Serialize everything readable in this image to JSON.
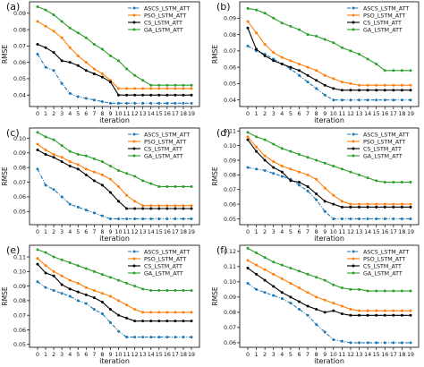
{
  "chart_data": [
    {
      "type": "line",
      "panel_label": "(a)",
      "xlabel": "iteration",
      "ylabel": "RMSE",
      "x": [
        0,
        1,
        2,
        3,
        4,
        5,
        6,
        7,
        8,
        9,
        10,
        11,
        12,
        13,
        14,
        15,
        16,
        17,
        18,
        19
      ],
      "xticks": [
        "0",
        "1",
        "2",
        "3",
        "4",
        "5",
        "6",
        "7",
        "8",
        "9",
        "10",
        "11",
        "12",
        "13",
        "14",
        "15",
        "16",
        "17",
        "18",
        "19"
      ],
      "ylim": [
        0.033,
        0.097
      ],
      "yticks": [
        0.04,
        0.05,
        0.06,
        0.07,
        0.08,
        0.09
      ],
      "ytick_labels": [
        "0.04",
        "0.05",
        "0.06",
        "0.07",
        "0.08",
        "0.09"
      ],
      "legend_position": "top-right",
      "series": [
        {
          "name": "ASCS_LSTM_ATT",
          "color": "#1f77b4",
          "style": "dashdot",
          "values": [
            0.065,
            0.057,
            0.055,
            0.047,
            0.041,
            0.039,
            0.038,
            0.037,
            0.036,
            0.035,
            0.035,
            0.035,
            0.035,
            0.035,
            0.035,
            0.035,
            0.035,
            0.035,
            0.035,
            0.035
          ]
        },
        {
          "name": "PSO_LSTM_ATT",
          "color": "#ff7f0e",
          "style": "solid",
          "values": [
            0.085,
            0.082,
            0.079,
            0.075,
            0.069,
            0.064,
            0.06,
            0.056,
            0.053,
            0.049,
            0.044,
            0.044,
            0.044,
            0.044,
            0.044,
            0.044,
            0.044,
            0.044,
            0.044,
            0.044
          ]
        },
        {
          "name": "CS_LSTM_ATT",
          "color": "#000000",
          "style": "solid",
          "values": [
            0.071,
            0.069,
            0.066,
            0.061,
            0.06,
            0.058,
            0.055,
            0.053,
            0.051,
            0.048,
            0.04,
            0.04,
            0.04,
            0.04,
            0.04,
            0.04,
            0.04,
            0.04,
            0.04,
            0.04
          ]
        },
        {
          "name": "GA_LSTM_ATT",
          "color": "#2ca02c",
          "style": "solid",
          "values": [
            0.094,
            0.092,
            0.089,
            0.085,
            0.081,
            0.078,
            0.075,
            0.071,
            0.068,
            0.064,
            0.061,
            0.056,
            0.052,
            0.049,
            0.046,
            0.046,
            0.046,
            0.046,
            0.046,
            0.046
          ]
        }
      ]
    },
    {
      "type": "line",
      "panel_label": "(b)",
      "xlabel": "iteration",
      "ylabel": "RMSE",
      "x": [
        0,
        1,
        2,
        3,
        4,
        5,
        6,
        7,
        8,
        9,
        10,
        11,
        12,
        13,
        14,
        15,
        16,
        17,
        18,
        19
      ],
      "xticks": [
        "0",
        "1",
        "2",
        "3",
        "4",
        "5",
        "6",
        "7",
        "8",
        "9",
        "10",
        "11",
        "12",
        "13",
        "14",
        "15",
        "16",
        "17",
        "18",
        "19"
      ],
      "ylim": [
        0.036,
        0.1
      ],
      "yticks": [
        0.04,
        0.05,
        0.06,
        0.07,
        0.08,
        0.09
      ],
      "ytick_labels": [
        "0.04",
        "0.05",
        "0.06",
        "0.07",
        "0.08",
        "0.09"
      ],
      "legend_position": "top-right",
      "series": [
        {
          "name": "ASCS_LSTM_ATT",
          "color": "#1f77b4",
          "style": "dashdot",
          "values": [
            0.073,
            0.07,
            0.068,
            0.065,
            0.062,
            0.059,
            0.055,
            0.051,
            0.047,
            0.043,
            0.04,
            0.04,
            0.04,
            0.04,
            0.04,
            0.04,
            0.04,
            0.04,
            0.04,
            0.04
          ]
        },
        {
          "name": "PSO_LSTM_ATT",
          "color": "#ff7f0e",
          "style": "solid",
          "values": [
            0.088,
            0.081,
            0.074,
            0.069,
            0.066,
            0.064,
            0.062,
            0.06,
            0.058,
            0.055,
            0.053,
            0.051,
            0.05,
            0.049,
            0.049,
            0.049,
            0.049,
            0.049,
            0.049,
            0.049
          ]
        },
        {
          "name": "CS_LSTM_ATT",
          "color": "#000000",
          "style": "solid",
          "values": [
            0.084,
            0.071,
            0.067,
            0.064,
            0.062,
            0.06,
            0.058,
            0.055,
            0.052,
            0.049,
            0.047,
            0.046,
            0.046,
            0.046,
            0.046,
            0.046,
            0.046,
            0.046,
            0.046,
            0.046
          ]
        },
        {
          "name": "GA_LSTM_ATT",
          "color": "#2ca02c",
          "style": "solid",
          "values": [
            0.096,
            0.095,
            0.093,
            0.09,
            0.087,
            0.085,
            0.083,
            0.08,
            0.079,
            0.077,
            0.075,
            0.072,
            0.07,
            0.068,
            0.065,
            0.062,
            0.058,
            0.058,
            0.058,
            0.058
          ]
        }
      ]
    },
    {
      "type": "line",
      "panel_label": "(c)",
      "xlabel": "iteration",
      "ylabel": "RMSE",
      "x": [
        0,
        1,
        2,
        3,
        4,
        5,
        6,
        7,
        8,
        9,
        10,
        11,
        12,
        13,
        14,
        15,
        16,
        17,
        18,
        19
      ],
      "xticks": [
        "0",
        "1",
        "2",
        "3",
        "4",
        "5",
        "6",
        "7",
        "8",
        "9",
        "10",
        "11",
        "12",
        "13",
        "14",
        "15",
        "16",
        "17",
        "18",
        "19"
      ],
      "ylim": [
        0.041,
        0.107
      ],
      "yticks": [
        0.05,
        0.06,
        0.07,
        0.08,
        0.09,
        0.1
      ],
      "ytick_labels": [
        "0.05",
        "0.06",
        "0.07",
        "0.08",
        "0.09",
        "0.10"
      ],
      "legend_position": "top-right",
      "series": [
        {
          "name": "ASCS_LSTM_ATT",
          "color": "#1f77b4",
          "style": "dashdot",
          "values": [
            0.079,
            0.068,
            0.065,
            0.06,
            0.055,
            0.053,
            0.051,
            0.049,
            0.047,
            0.045,
            0.045,
            0.045,
            0.045,
            0.045,
            0.045,
            0.045,
            0.045,
            0.045,
            0.045,
            0.045
          ]
        },
        {
          "name": "PSO_LSTM_ATT",
          "color": "#ff7f0e",
          "style": "solid",
          "values": [
            0.096,
            0.092,
            0.089,
            0.087,
            0.084,
            0.082,
            0.079,
            0.077,
            0.075,
            0.072,
            0.067,
            0.061,
            0.057,
            0.054,
            0.054,
            0.054,
            0.054,
            0.054,
            0.054,
            0.054
          ]
        },
        {
          "name": "CS_LSTM_ATT",
          "color": "#000000",
          "style": "solid",
          "values": [
            0.092,
            0.089,
            0.087,
            0.084,
            0.081,
            0.079,
            0.075,
            0.071,
            0.068,
            0.063,
            0.057,
            0.052,
            0.052,
            0.052,
            0.052,
            0.052,
            0.052,
            0.052,
            0.052,
            0.052
          ]
        },
        {
          "name": "GA_LSTM_ATT",
          "color": "#2ca02c",
          "style": "solid",
          "values": [
            0.104,
            0.101,
            0.099,
            0.095,
            0.091,
            0.089,
            0.088,
            0.086,
            0.084,
            0.081,
            0.078,
            0.076,
            0.074,
            0.071,
            0.069,
            0.067,
            0.067,
            0.067,
            0.067,
            0.067
          ]
        }
      ]
    },
    {
      "type": "line",
      "panel_label": "(d)",
      "xlabel": "iteration",
      "ylabel": "RMSE",
      "x": [
        0,
        1,
        2,
        3,
        4,
        5,
        6,
        7,
        8,
        9,
        10,
        11,
        12,
        13,
        14,
        15,
        16,
        17,
        18,
        19
      ],
      "xticks": [
        "0",
        "1",
        "2",
        "3",
        "4",
        "5",
        "6",
        "7",
        "8",
        "9",
        "10",
        "11",
        "12",
        "13",
        "14",
        "15",
        "16",
        "17",
        "18",
        "19"
      ],
      "ylim": [
        0.046,
        0.112
      ],
      "yticks": [
        0.05,
        0.06,
        0.07,
        0.08,
        0.09,
        0.1,
        0.11
      ],
      "ytick_labels": [
        "0.05",
        "0.06",
        "0.07",
        "0.08",
        "0.09",
        "0.10",
        "0.11"
      ],
      "legend_position": "top-right",
      "series": [
        {
          "name": "ASCS_LSTM_ATT",
          "color": "#1f77b4",
          "style": "dashdot",
          "values": [
            0.085,
            0.084,
            0.083,
            0.081,
            0.079,
            0.077,
            0.073,
            0.069,
            0.063,
            0.055,
            0.05,
            0.05,
            0.05,
            0.05,
            0.05,
            0.05,
            0.05,
            0.05,
            0.05,
            0.05
          ]
        },
        {
          "name": "PSO_LSTM_ATT",
          "color": "#ff7f0e",
          "style": "solid",
          "values": [
            0.106,
            0.099,
            0.093,
            0.089,
            0.086,
            0.084,
            0.082,
            0.08,
            0.077,
            0.071,
            0.066,
            0.062,
            0.06,
            0.06,
            0.06,
            0.06,
            0.06,
            0.06,
            0.06,
            0.06
          ]
        },
        {
          "name": "CS_LSTM_ATT",
          "color": "#000000",
          "style": "solid",
          "values": [
            0.104,
            0.096,
            0.09,
            0.085,
            0.082,
            0.076,
            0.075,
            0.072,
            0.067,
            0.062,
            0.06,
            0.058,
            0.058,
            0.058,
            0.058,
            0.058,
            0.058,
            0.058,
            0.058,
            0.058
          ]
        },
        {
          "name": "GA_LSTM_ATT",
          "color": "#2ca02c",
          "style": "solid",
          "values": [
            0.109,
            0.106,
            0.104,
            0.101,
            0.098,
            0.096,
            0.094,
            0.092,
            0.09,
            0.088,
            0.086,
            0.084,
            0.082,
            0.08,
            0.078,
            0.076,
            0.075,
            0.075,
            0.075,
            0.075
          ]
        }
      ]
    },
    {
      "type": "line",
      "panel_label": "(e)",
      "xlabel": "iteration",
      "ylabel": "RMSE",
      "x": [
        0,
        1,
        2,
        3,
        4,
        5,
        6,
        7,
        8,
        9,
        10,
        11,
        12,
        13,
        14,
        15,
        16,
        17,
        18,
        19
      ],
      "xticks": [
        "0",
        "1",
        "2",
        "3",
        "4",
        "5",
        "6",
        "7",
        "8",
        "9",
        "10",
        "11",
        "12",
        "13",
        "14",
        "15",
        "16",
        "17",
        "18",
        "19"
      ],
      "ylim": [
        0.048,
        0.118
      ],
      "yticks": [
        0.05,
        0.06,
        0.07,
        0.08,
        0.09,
        0.1,
        0.11
      ],
      "ytick_labels": [
        "0.05",
        "0.06",
        "0.07",
        "0.08",
        "0.09",
        "0.10",
        "0.11"
      ],
      "legend_position": "top-right",
      "series": [
        {
          "name": "ASCS_LSTM_ATT",
          "color": "#1f77b4",
          "style": "dashdot",
          "values": [
            0.093,
            0.089,
            0.087,
            0.085,
            0.083,
            0.08,
            0.078,
            0.074,
            0.071,
            0.065,
            0.059,
            0.055,
            0.055,
            0.055,
            0.055,
            0.055,
            0.055,
            0.055,
            0.055,
            0.055
          ]
        },
        {
          "name": "PSO_LSTM_ATT",
          "color": "#ff7f0e",
          "style": "solid",
          "values": [
            0.109,
            0.104,
            0.1,
            0.097,
            0.094,
            0.092,
            0.089,
            0.087,
            0.085,
            0.083,
            0.08,
            0.077,
            0.074,
            0.072,
            0.072,
            0.072,
            0.072,
            0.072,
            0.072,
            0.072
          ]
        },
        {
          "name": "CS_LSTM_ATT",
          "color": "#000000",
          "style": "solid",
          "values": [
            0.105,
            0.099,
            0.097,
            0.091,
            0.088,
            0.086,
            0.084,
            0.082,
            0.079,
            0.074,
            0.07,
            0.068,
            0.066,
            0.066,
            0.066,
            0.066,
            0.066,
            0.066,
            0.066,
            0.066
          ]
        },
        {
          "name": "GA_LSTM_ATT",
          "color": "#2ca02c",
          "style": "solid",
          "values": [
            0.115,
            0.113,
            0.11,
            0.108,
            0.106,
            0.104,
            0.102,
            0.1,
            0.098,
            0.096,
            0.094,
            0.092,
            0.09,
            0.088,
            0.087,
            0.087,
            0.087,
            0.087,
            0.087,
            0.087
          ]
        }
      ]
    },
    {
      "type": "line",
      "panel_label": "(f)",
      "xlabel": "iteration",
      "ylabel": "RMSE",
      "x": [
        0,
        1,
        2,
        3,
        4,
        5,
        6,
        7,
        8,
        9,
        10,
        11,
        12,
        13,
        14,
        15,
        16,
        17,
        18,
        19
      ],
      "xticks": [
        "0",
        "1",
        "2",
        "3",
        "4",
        "5",
        "6",
        "7",
        "8",
        "9",
        "10",
        "11",
        "12",
        "13",
        "14",
        "15",
        "16",
        "17",
        "18",
        "19"
      ],
      "ylim": [
        0.057,
        0.124
      ],
      "yticks": [
        0.06,
        0.07,
        0.08,
        0.09,
        0.1,
        0.11,
        0.12
      ],
      "ytick_labels": [
        "0.06",
        "0.07",
        "0.08",
        "0.09",
        "0.10",
        "0.11",
        "0.12"
      ],
      "legend_position": "top-right",
      "series": [
        {
          "name": "ASCS_LSTM_ATT",
          "color": "#1f77b4",
          "style": "dashdot",
          "values": [
            0.099,
            0.095,
            0.093,
            0.091,
            0.089,
            0.086,
            0.082,
            0.078,
            0.072,
            0.067,
            0.062,
            0.061,
            0.06,
            0.06,
            0.06,
            0.06,
            0.06,
            0.06,
            0.06,
            0.06
          ]
        },
        {
          "name": "PSO_LSTM_ATT",
          "color": "#ff7f0e",
          "style": "solid",
          "values": [
            0.114,
            0.111,
            0.108,
            0.105,
            0.102,
            0.099,
            0.096,
            0.093,
            0.09,
            0.088,
            0.086,
            0.084,
            0.082,
            0.081,
            0.081,
            0.081,
            0.081,
            0.081,
            0.081,
            0.081
          ]
        },
        {
          "name": "CS_LSTM_ATT",
          "color": "#000000",
          "style": "solid",
          "values": [
            0.109,
            0.105,
            0.101,
            0.097,
            0.093,
            0.09,
            0.087,
            0.084,
            0.082,
            0.08,
            0.081,
            0.079,
            0.078,
            0.078,
            0.078,
            0.078,
            0.078,
            0.078,
            0.078,
            0.078
          ]
        },
        {
          "name": "GA_LSTM_ATT",
          "color": "#2ca02c",
          "style": "solid",
          "values": [
            0.122,
            0.119,
            0.116,
            0.113,
            0.111,
            0.109,
            0.107,
            0.105,
            0.103,
            0.101,
            0.098,
            0.096,
            0.095,
            0.095,
            0.094,
            0.094,
            0.094,
            0.094,
            0.094,
            0.094
          ]
        }
      ]
    }
  ]
}
